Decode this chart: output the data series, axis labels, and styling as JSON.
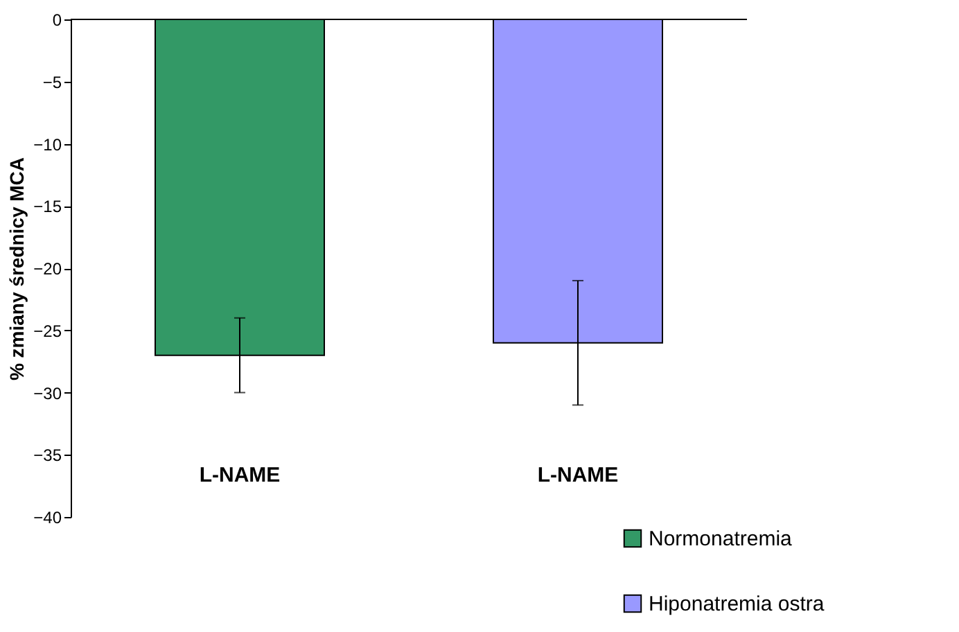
{
  "chart_data": {
    "type": "bar",
    "ylabel": "% zmiany średnicy MCA",
    "categories": [
      "L-NAME",
      "L-NAME"
    ],
    "series": [
      {
        "name": "Normonatremia",
        "color": "#339966",
        "values": [
          -27,
          null
        ],
        "errors": [
          3,
          null
        ]
      },
      {
        "name": "Hiponatremia ostra",
        "color": "#9999ff",
        "values": [
          null,
          -26
        ],
        "errors": [
          null,
          5
        ]
      }
    ],
    "ylim": [
      -40,
      0
    ],
    "yticks": [
      0,
      -5,
      -10,
      -15,
      -20,
      -25,
      -30,
      -35,
      -40
    ],
    "grid": false,
    "legend": "bottom right"
  }
}
